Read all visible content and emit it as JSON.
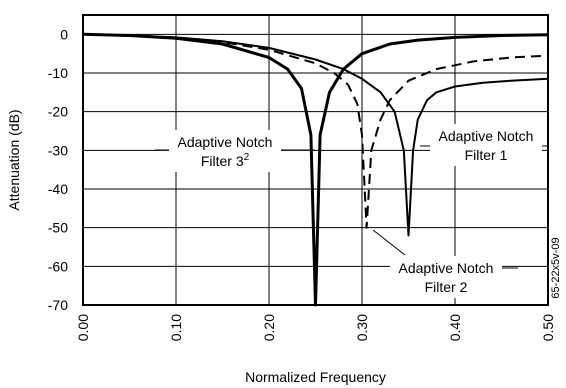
{
  "chart_data": {
    "type": "line",
    "xlabel": "Normalized Frequency",
    "ylabel": "Attenuation (dB)",
    "xlim": [
      0.0,
      0.5
    ],
    "ylim": [
      -70,
      5
    ],
    "xticks": [
      "0.00",
      "0.10",
      "0.20",
      "0.30",
      "0.40",
      "0.50"
    ],
    "xtick_values": [
      0.0,
      0.1,
      0.2,
      0.3,
      0.4,
      0.5
    ],
    "yticks": [
      "0",
      "-10",
      "-20",
      "-30",
      "-40",
      "-50",
      "-60",
      "-70"
    ],
    "ytick_values": [
      0,
      -10,
      -20,
      -30,
      -40,
      -50,
      -60,
      -70
    ],
    "grid": true,
    "series": [
      {
        "name": "Adaptive Notch Filter 3",
        "style": "solid-thick",
        "x": [
          0.0,
          0.05,
          0.1,
          0.15,
          0.2,
          0.22,
          0.235,
          0.245,
          0.25,
          0.255,
          0.265,
          0.28,
          0.3,
          0.33,
          0.36,
          0.4,
          0.45,
          0.5
        ],
        "y": [
          0,
          -0.3,
          -1.0,
          -2.5,
          -6,
          -9,
          -14,
          -26,
          -70,
          -26,
          -15,
          -9,
          -5,
          -2.5,
          -1.5,
          -0.8,
          -0.3,
          -0.1
        ]
      },
      {
        "name": "Adaptive Notch Filter 2",
        "style": "dashed",
        "x": [
          0.0,
          0.05,
          0.1,
          0.15,
          0.2,
          0.25,
          0.27,
          0.285,
          0.295,
          0.3,
          0.305,
          0.31,
          0.32,
          0.33,
          0.35,
          0.38,
          0.42,
          0.46,
          0.5
        ],
        "y": [
          0,
          -0.3,
          -0.8,
          -2.0,
          -4.0,
          -7.5,
          -10,
          -13,
          -18,
          -26,
          -50,
          -30,
          -22,
          -17,
          -12,
          -9,
          -7,
          -6,
          -5.5
        ]
      },
      {
        "name": "Adaptive Notch Filter 1",
        "style": "solid",
        "x": [
          0.0,
          0.05,
          0.1,
          0.15,
          0.2,
          0.25,
          0.28,
          0.3,
          0.32,
          0.335,
          0.345,
          0.35,
          0.355,
          0.36,
          0.37,
          0.38,
          0.4,
          0.43,
          0.46,
          0.5
        ],
        "y": [
          0,
          -0.3,
          -0.8,
          -1.8,
          -3.5,
          -6.5,
          -9,
          -11.5,
          -15,
          -20,
          -30,
          -52,
          -30,
          -22,
          -17,
          -15,
          -13.5,
          -12.5,
          -12,
          -11.5
        ]
      }
    ],
    "annotations": [
      {
        "line1": "Adaptive Notch",
        "line2": "Filter 3",
        "sup": "2"
      },
      {
        "line1": "Adaptive Notch",
        "line2": "Filter 1",
        "sup": ""
      },
      {
        "line1": "Adaptive Notch",
        "line2": "Filter 2",
        "sup": ""
      }
    ],
    "side_note": "65-22x5v-09"
  }
}
